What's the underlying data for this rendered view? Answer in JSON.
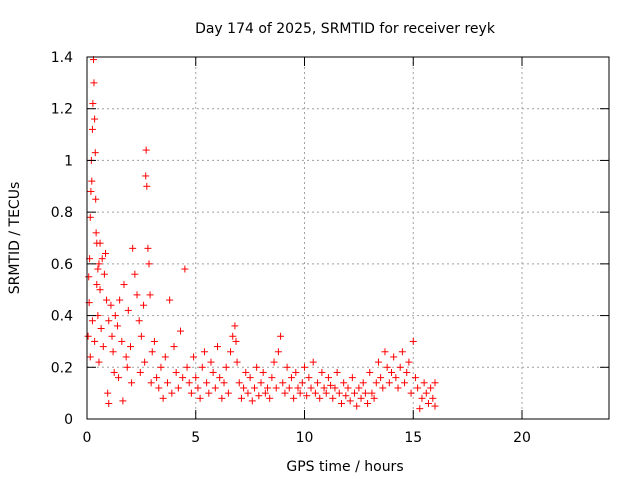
{
  "chart_data": {
    "type": "scatter",
    "title": "Day 174 of 2025, SRMTID for receiver reyk",
    "xlabel": "GPS time / hours",
    "ylabel": "SRMTID / TECUs",
    "xlim": [
      0,
      24
    ],
    "ylim": [
      0,
      1.4
    ],
    "xticks": [
      0,
      5,
      10,
      15,
      20
    ],
    "xtick_labels": [
      "0",
      "5",
      "10",
      "15",
      "20"
    ],
    "yticks": [
      0,
      0.2,
      0.4,
      0.6,
      0.8,
      1.0,
      1.2,
      1.4
    ],
    "ytick_labels": [
      "0",
      "0.2",
      "0.4",
      "0.6",
      "0.8",
      "1",
      "1.2",
      "1.4"
    ],
    "grid": true,
    "marker": "+",
    "marker_color": "#ff0000",
    "x_range_of_data": [
      0,
      16
    ],
    "series": [
      {
        "name": "SRMTID",
        "points": [
          [
            0.05,
            0.32
          ],
          [
            0.08,
            0.55
          ],
          [
            0.1,
            0.45
          ],
          [
            0.12,
            0.62
          ],
          [
            0.15,
            0.78
          ],
          [
            0.18,
            0.88
          ],
          [
            0.2,
            1.0
          ],
          [
            0.22,
            0.92
          ],
          [
            0.25,
            1.12
          ],
          [
            0.27,
            1.22
          ],
          [
            0.3,
            1.39
          ],
          [
            0.32,
            1.3
          ],
          [
            0.35,
            1.16
          ],
          [
            0.38,
            1.03
          ],
          [
            0.4,
            0.85
          ],
          [
            0.42,
            0.72
          ],
          [
            0.45,
            0.68
          ],
          [
            0.5,
            0.58
          ],
          [
            0.55,
            0.6
          ],
          [
            0.6,
            0.5
          ],
          [
            0.15,
            0.24
          ],
          [
            0.25,
            0.38
          ],
          [
            0.35,
            0.3
          ],
          [
            0.45,
            0.52
          ],
          [
            0.5,
            0.4
          ],
          [
            0.6,
            0.68
          ],
          [
            0.7,
            0.62
          ],
          [
            0.8,
            0.56
          ],
          [
            0.85,
            0.64
          ],
          [
            0.9,
            0.46
          ],
          [
            0.55,
            0.22
          ],
          [
            0.65,
            0.35
          ],
          [
            0.75,
            0.28
          ],
          [
            0.95,
            0.1
          ],
          [
            1.0,
            0.06
          ],
          [
            1.0,
            0.38
          ],
          [
            1.1,
            0.44
          ],
          [
            1.15,
            0.32
          ],
          [
            1.2,
            0.26
          ],
          [
            1.3,
            0.4
          ],
          [
            1.4,
            0.36
          ],
          [
            1.5,
            0.46
          ],
          [
            1.6,
            0.3
          ],
          [
            1.7,
            0.52
          ],
          [
            1.8,
            0.24
          ],
          [
            1.9,
            0.42
          ],
          [
            2.0,
            0.28
          ],
          [
            2.1,
            0.66
          ],
          [
            2.2,
            0.56
          ],
          [
            2.3,
            0.48
          ],
          [
            1.25,
            0.18
          ],
          [
            1.45,
            0.16
          ],
          [
            1.65,
            0.07
          ],
          [
            1.85,
            0.2
          ],
          [
            2.05,
            0.14
          ],
          [
            2.4,
            0.38
          ],
          [
            2.5,
            0.32
          ],
          [
            2.6,
            0.44
          ],
          [
            2.7,
            0.94
          ],
          [
            2.72,
            1.04
          ],
          [
            2.75,
            0.9
          ],
          [
            2.8,
            0.66
          ],
          [
            2.85,
            0.6
          ],
          [
            2.9,
            0.48
          ],
          [
            3.0,
            0.26
          ],
          [
            2.45,
            0.18
          ],
          [
            2.65,
            0.22
          ],
          [
            2.95,
            0.14
          ],
          [
            3.1,
            0.3
          ],
          [
            3.2,
            0.16
          ],
          [
            3.3,
            0.12
          ],
          [
            3.4,
            0.2
          ],
          [
            3.5,
            0.08
          ],
          [
            3.6,
            0.24
          ],
          [
            3.7,
            0.14
          ],
          [
            3.8,
            0.46
          ],
          [
            3.9,
            0.1
          ],
          [
            4.0,
            0.28
          ],
          [
            4.1,
            0.18
          ],
          [
            4.2,
            0.12
          ],
          [
            4.3,
            0.34
          ],
          [
            4.4,
            0.16
          ],
          [
            4.5,
            0.58
          ],
          [
            4.6,
            0.2
          ],
          [
            4.7,
            0.14
          ],
          [
            4.8,
            0.1
          ],
          [
            4.9,
            0.24
          ],
          [
            5.0,
            0.16
          ],
          [
            5.1,
            0.12
          ],
          [
            5.2,
            0.08
          ],
          [
            5.3,
            0.2
          ],
          [
            5.4,
            0.26
          ],
          [
            5.5,
            0.14
          ],
          [
            5.6,
            0.1
          ],
          [
            5.7,
            0.22
          ],
          [
            5.8,
            0.18
          ],
          [
            5.9,
            0.12
          ],
          [
            6.0,
            0.28
          ],
          [
            6.1,
            0.16
          ],
          [
            6.2,
            0.08
          ],
          [
            6.3,
            0.14
          ],
          [
            6.4,
            0.2
          ],
          [
            6.5,
            0.1
          ],
          [
            6.6,
            0.26
          ],
          [
            6.7,
            0.32
          ],
          [
            6.8,
            0.36
          ],
          [
            6.85,
            0.3
          ],
          [
            6.9,
            0.22
          ],
          [
            7.0,
            0.14
          ],
          [
            7.1,
            0.08
          ],
          [
            7.2,
            0.12
          ],
          [
            7.3,
            0.18
          ],
          [
            7.4,
            0.1
          ],
          [
            7.5,
            0.16
          ],
          [
            7.6,
            0.07
          ],
          [
            7.7,
            0.12
          ],
          [
            7.8,
            0.2
          ],
          [
            7.9,
            0.09
          ],
          [
            8.0,
            0.14
          ],
          [
            8.1,
            0.18
          ],
          [
            8.2,
            0.1
          ],
          [
            8.3,
            0.12
          ],
          [
            8.4,
            0.08
          ],
          [
            8.5,
            0.16
          ],
          [
            8.6,
            0.22
          ],
          [
            8.7,
            0.12
          ],
          [
            8.8,
            0.26
          ],
          [
            8.9,
            0.32
          ],
          [
            9.0,
            0.14
          ],
          [
            9.1,
            0.1
          ],
          [
            9.2,
            0.2
          ],
          [
            9.3,
            0.12
          ],
          [
            9.4,
            0.16
          ],
          [
            9.5,
            0.08
          ],
          [
            9.6,
            0.18
          ],
          [
            9.7,
            0.12
          ],
          [
            9.8,
            0.1
          ],
          [
            9.9,
            0.14
          ],
          [
            10.0,
            0.2
          ],
          [
            10.1,
            0.09
          ],
          [
            10.2,
            0.16
          ],
          [
            10.3,
            0.12
          ],
          [
            10.4,
            0.22
          ],
          [
            10.5,
            0.1
          ],
          [
            10.6,
            0.14
          ],
          [
            10.7,
            0.08
          ],
          [
            10.8,
            0.18
          ],
          [
            10.9,
            0.12
          ],
          [
            11.0,
            0.1
          ],
          [
            11.1,
            0.16
          ],
          [
            11.2,
            0.13
          ],
          [
            11.3,
            0.08
          ],
          [
            11.4,
            0.12
          ],
          [
            11.5,
            0.18
          ],
          [
            11.6,
            0.1
          ],
          [
            11.7,
            0.06
          ],
          [
            11.8,
            0.14
          ],
          [
            11.9,
            0.09
          ],
          [
            12.0,
            0.12
          ],
          [
            12.1,
            0.07
          ],
          [
            12.2,
            0.16
          ],
          [
            12.3,
            0.1
          ],
          [
            12.4,
            0.05
          ],
          [
            12.5,
            0.12
          ],
          [
            12.6,
            0.08
          ],
          [
            12.7,
            0.14
          ],
          [
            12.8,
            0.1
          ],
          [
            12.9,
            0.06
          ],
          [
            13.0,
            0.18
          ],
          [
            13.1,
            0.1
          ],
          [
            13.2,
            0.08
          ],
          [
            13.3,
            0.14
          ],
          [
            13.4,
            0.22
          ],
          [
            13.5,
            0.16
          ],
          [
            13.6,
            0.12
          ],
          [
            13.7,
            0.26
          ],
          [
            13.8,
            0.2
          ],
          [
            13.9,
            0.14
          ],
          [
            14.0,
            0.18
          ],
          [
            14.1,
            0.24
          ],
          [
            14.2,
            0.16
          ],
          [
            14.3,
            0.12
          ],
          [
            14.4,
            0.2
          ],
          [
            14.5,
            0.26
          ],
          [
            14.6,
            0.14
          ],
          [
            14.7,
            0.18
          ],
          [
            14.8,
            0.22
          ],
          [
            14.9,
            0.1
          ],
          [
            15.0,
            0.3
          ],
          [
            15.1,
            0.16
          ],
          [
            15.2,
            0.12
          ],
          [
            15.3,
            0.04
          ],
          [
            15.4,
            0.08
          ],
          [
            15.5,
            0.14
          ],
          [
            15.6,
            0.1
          ],
          [
            15.7,
            0.06
          ],
          [
            15.8,
            0.12
          ],
          [
            15.9,
            0.08
          ],
          [
            16.0,
            0.14
          ],
          [
            16.0,
            0.05
          ]
        ]
      }
    ]
  }
}
